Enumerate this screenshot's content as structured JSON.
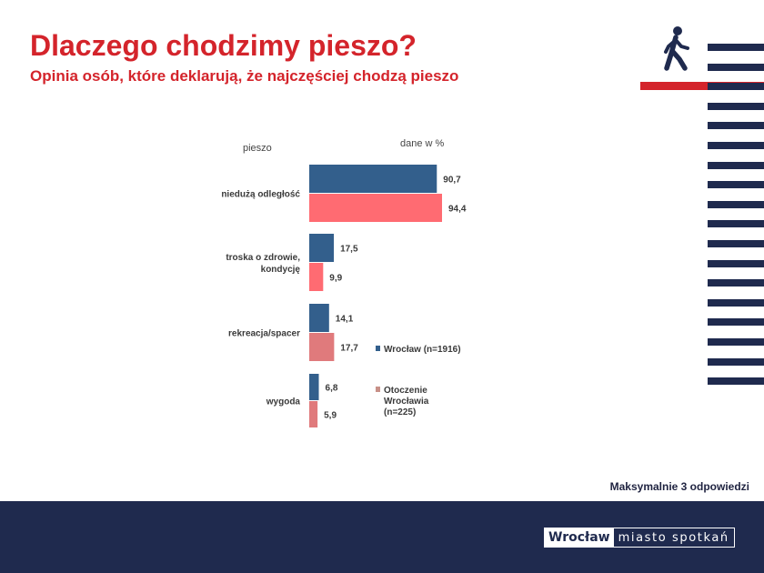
{
  "slide": {
    "title": "Dlaczego chodzimy pieszo?",
    "subtitle": "Opinia osób, które deklarują, że najczęściej chodzą pieszo",
    "footnote": "Maksymalnie 3 odpowiedzi",
    "logo": {
      "brand": "Wrocław",
      "tagline": "miasto spotkań"
    },
    "icon": "walking-person-icon"
  },
  "colors": {
    "title_red": "#d4242b",
    "navy": "#1f2a4e",
    "series1": "#335f8c",
    "series2": "#ff6b72",
    "series2_muted": "#e07a7c",
    "legend2_marker": "#c89088"
  },
  "chart_data": {
    "type": "bar",
    "orientation": "horizontal",
    "header_left": "pieszo",
    "header_right": "dane w %",
    "categories": [
      "niedużą odległość",
      "troska o zdrowie, kondycję",
      "rekreacja/spacer",
      "wygoda"
    ],
    "series": [
      {
        "name": "Wrocław (n=1916)",
        "values": [
          90.7,
          17.5,
          14.1,
          6.8
        ]
      },
      {
        "name": "Otoczenie Wrocławia (n=225)",
        "values": [
          94.4,
          9.9,
          17.7,
          5.9
        ]
      }
    ],
    "value_labels": [
      [
        "90,7",
        "17,5",
        "14,1",
        "6,8"
      ],
      [
        "94,4",
        "9,9",
        "17,7",
        "5,9"
      ]
    ],
    "legend_placement": "right",
    "grid": false,
    "xlim": [
      0,
      100
    ]
  }
}
